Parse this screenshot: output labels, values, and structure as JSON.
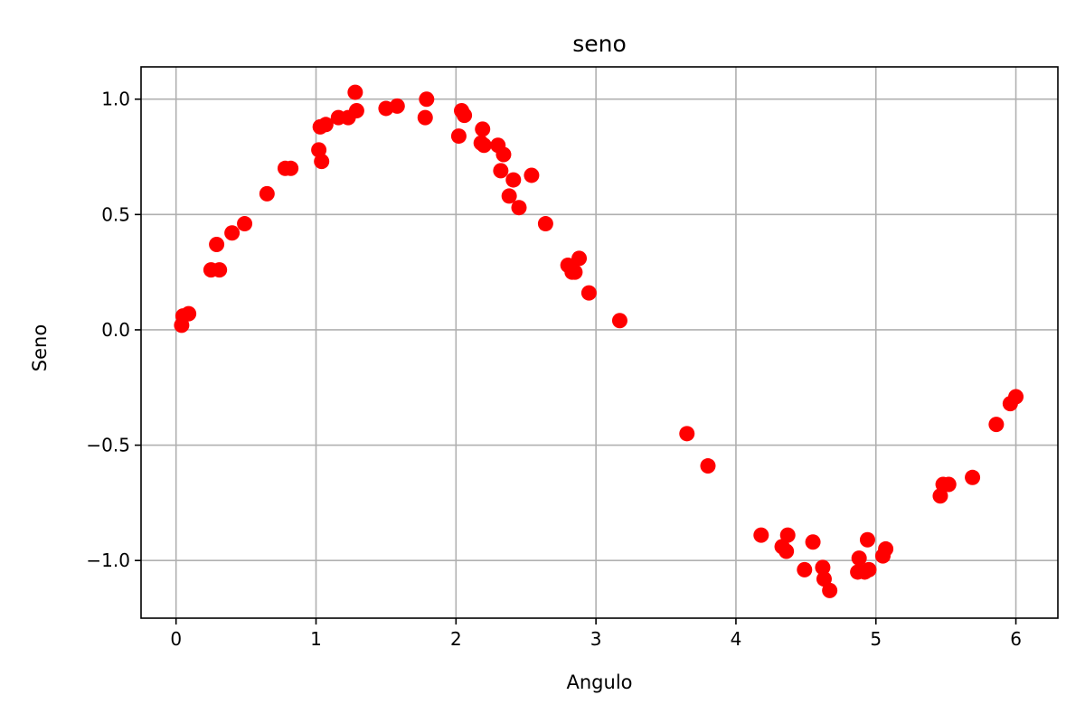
{
  "chart_data": {
    "type": "scatter",
    "title": "seno",
    "xlabel": "Angulo",
    "ylabel": "Seno",
    "xlim": [
      -0.25,
      6.3
    ],
    "ylim": [
      -1.25,
      1.14
    ],
    "xticks": [
      0,
      1,
      2,
      3,
      4,
      5,
      6
    ],
    "xtick_labels": [
      "0",
      "1",
      "2",
      "3",
      "4",
      "5",
      "6"
    ],
    "yticks": [
      -1.0,
      -0.5,
      0.0,
      0.5,
      1.0
    ],
    "ytick_labels": [
      "−1.0",
      "−0.5",
      "0.0",
      "0.5",
      "1.0"
    ],
    "grid": true,
    "marker_color": "#ff0000",
    "points": [
      {
        "x": 0.04,
        "y": 0.02
      },
      {
        "x": 0.05,
        "y": 0.06
      },
      {
        "x": 0.09,
        "y": 0.07
      },
      {
        "x": 0.25,
        "y": 0.26
      },
      {
        "x": 0.29,
        "y": 0.37
      },
      {
        "x": 0.31,
        "y": 0.26
      },
      {
        "x": 0.4,
        "y": 0.42
      },
      {
        "x": 0.49,
        "y": 0.46
      },
      {
        "x": 0.65,
        "y": 0.59
      },
      {
        "x": 0.78,
        "y": 0.7
      },
      {
        "x": 0.82,
        "y": 0.7
      },
      {
        "x": 1.02,
        "y": 0.78
      },
      {
        "x": 1.03,
        "y": 0.88
      },
      {
        "x": 1.04,
        "y": 0.73
      },
      {
        "x": 1.07,
        "y": 0.89
      },
      {
        "x": 1.16,
        "y": 0.92
      },
      {
        "x": 1.23,
        "y": 0.92
      },
      {
        "x": 1.28,
        "y": 1.03
      },
      {
        "x": 1.29,
        "y": 0.95
      },
      {
        "x": 1.5,
        "y": 0.96
      },
      {
        "x": 1.58,
        "y": 0.97
      },
      {
        "x": 1.78,
        "y": 0.92
      },
      {
        "x": 1.79,
        "y": 1.0
      },
      {
        "x": 2.02,
        "y": 0.84
      },
      {
        "x": 2.04,
        "y": 0.95
      },
      {
        "x": 2.06,
        "y": 0.93
      },
      {
        "x": 2.18,
        "y": 0.81
      },
      {
        "x": 2.19,
        "y": 0.87
      },
      {
        "x": 2.2,
        "y": 0.8
      },
      {
        "x": 2.3,
        "y": 0.8
      },
      {
        "x": 2.32,
        "y": 0.69
      },
      {
        "x": 2.34,
        "y": 0.76
      },
      {
        "x": 2.38,
        "y": 0.58
      },
      {
        "x": 2.41,
        "y": 0.65
      },
      {
        "x": 2.45,
        "y": 0.53
      },
      {
        "x": 2.54,
        "y": 0.67
      },
      {
        "x": 2.64,
        "y": 0.46
      },
      {
        "x": 2.8,
        "y": 0.28
      },
      {
        "x": 2.83,
        "y": 0.25
      },
      {
        "x": 2.85,
        "y": 0.25
      },
      {
        "x": 2.88,
        "y": 0.31
      },
      {
        "x": 2.95,
        "y": 0.16
      },
      {
        "x": 3.17,
        "y": 0.04
      },
      {
        "x": 3.65,
        "y": -0.45
      },
      {
        "x": 3.8,
        "y": -0.59
      },
      {
        "x": 4.18,
        "y": -0.89
      },
      {
        "x": 4.33,
        "y": -0.94
      },
      {
        "x": 4.36,
        "y": -0.96
      },
      {
        "x": 4.37,
        "y": -0.89
      },
      {
        "x": 4.49,
        "y": -1.04
      },
      {
        "x": 4.55,
        "y": -0.92
      },
      {
        "x": 4.62,
        "y": -1.03
      },
      {
        "x": 4.63,
        "y": -1.08
      },
      {
        "x": 4.67,
        "y": -1.13
      },
      {
        "x": 4.87,
        "y": -1.05
      },
      {
        "x": 4.88,
        "y": -0.99
      },
      {
        "x": 4.92,
        "y": -1.05
      },
      {
        "x": 4.94,
        "y": -0.91
      },
      {
        "x": 4.95,
        "y": -1.04
      },
      {
        "x": 5.05,
        "y": -0.98
      },
      {
        "x": 5.07,
        "y": -0.95
      },
      {
        "x": 5.46,
        "y": -0.72
      },
      {
        "x": 5.48,
        "y": -0.67
      },
      {
        "x": 5.52,
        "y": -0.67
      },
      {
        "x": 5.69,
        "y": -0.64
      },
      {
        "x": 5.86,
        "y": -0.41
      },
      {
        "x": 5.96,
        "y": -0.32
      },
      {
        "x": 6.0,
        "y": -0.29
      }
    ]
  }
}
